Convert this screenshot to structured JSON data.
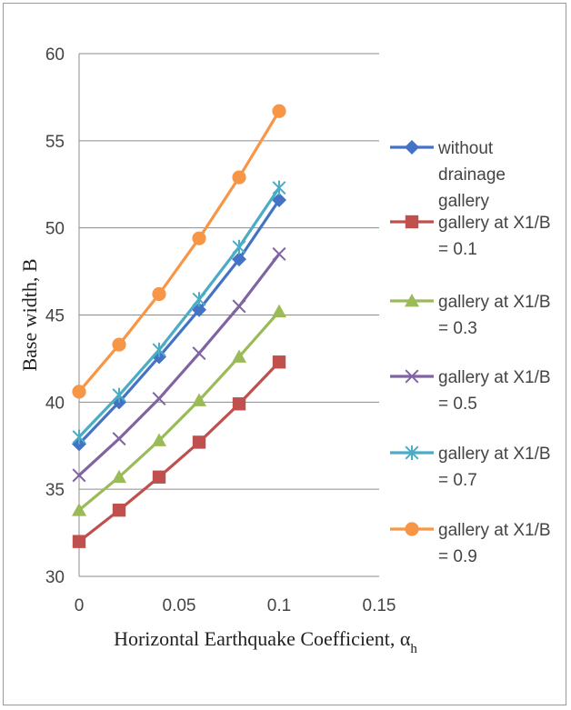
{
  "chart_data": {
    "type": "line",
    "title": "",
    "xlabel": "Horizontal Earthquake Coefficient, α",
    "xlabel_subscript": "h",
    "ylabel": "Base width, B",
    "xlim": [
      0,
      0.15
    ],
    "ylim": [
      30,
      60
    ],
    "x_ticks": [
      "0",
      "0.05",
      "0.1",
      "0.15"
    ],
    "y_ticks": [
      "30",
      "35",
      "40",
      "45",
      "50",
      "55",
      "60"
    ],
    "grid": "horizontal",
    "legend_position": "right",
    "x": [
      0,
      0.02,
      0.04,
      0.06,
      0.08,
      0.1
    ],
    "series": [
      {
        "name": "without drainage gallery",
        "legend_lines": [
          "without",
          "drainage",
          "gallery"
        ],
        "color": "#4472C4",
        "marker": "diamond",
        "values": [
          37.6,
          40.0,
          42.6,
          45.3,
          48.2,
          51.6
        ]
      },
      {
        "name": "gallery at X1/B = 0.1",
        "legend_lines": [
          "gallery at X1/B",
          "= 0.1"
        ],
        "color": "#C0504D",
        "marker": "square",
        "values": [
          32.0,
          33.8,
          35.7,
          37.7,
          39.9,
          42.3
        ]
      },
      {
        "name": "gallery at X1/B = 0.3",
        "legend_lines": [
          "gallery at X1/B",
          "= 0.3"
        ],
        "color": "#9BBB59",
        "marker": "triangle",
        "values": [
          33.8,
          35.7,
          37.8,
          40.1,
          42.6,
          45.2
        ]
      },
      {
        "name": "gallery at X1/B = 0.5",
        "legend_lines": [
          "gallery at X1/B",
          "= 0.5"
        ],
        "color": "#8064A2",
        "marker": "x",
        "values": [
          35.8,
          37.9,
          40.2,
          42.8,
          45.5,
          48.5
        ]
      },
      {
        "name": "gallery at X1/B = 0.7",
        "legend_lines": [
          "gallery at X1/B",
          "= 0.7"
        ],
        "color": "#4BACC6",
        "marker": "star",
        "values": [
          38.0,
          40.4,
          43.0,
          45.9,
          48.9,
          52.3
        ]
      },
      {
        "name": "gallery at X1/B = 0.9",
        "legend_lines": [
          "gallery at X1/B",
          "= 0.9"
        ],
        "color": "#F79646",
        "marker": "circle",
        "values": [
          40.6,
          43.3,
          46.2,
          49.4,
          52.9,
          56.7
        ]
      }
    ]
  }
}
